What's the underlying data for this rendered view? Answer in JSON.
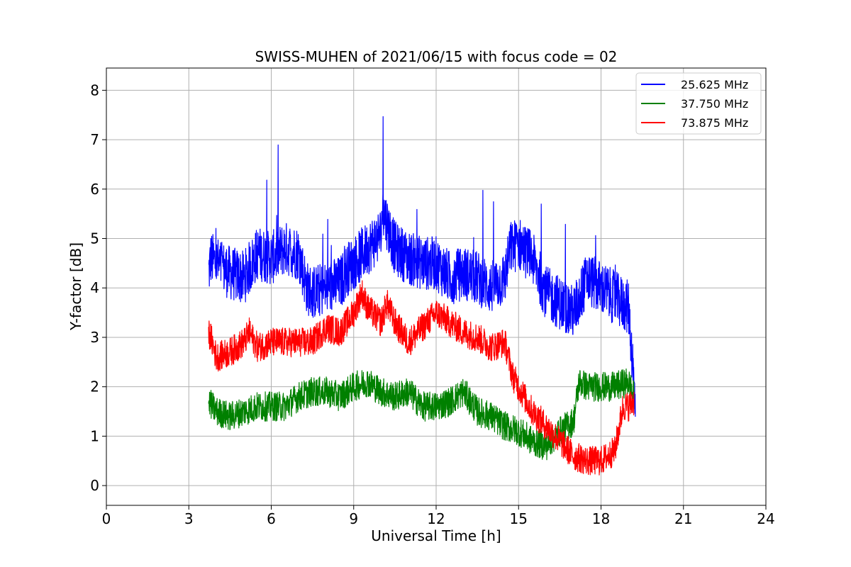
{
  "chart_data": {
    "type": "line",
    "title": "SWISS-MUHEN of 2021/06/15 with focus code = 02",
    "xlabel": "Universal Time [h]",
    "ylabel": "Y-factor [dB]",
    "xlim": [
      0,
      24
    ],
    "ylim": [
      -0.4,
      8.45
    ],
    "xticks": [
      0,
      3,
      6,
      9,
      12,
      15,
      18,
      21,
      24
    ],
    "xtick_labels": [
      "0",
      "3",
      "6",
      "9",
      "12",
      "15",
      "18",
      "21",
      "24"
    ],
    "yticks": [
      0,
      1,
      2,
      3,
      4,
      5,
      6,
      7,
      8
    ],
    "ytick_labels": [
      "0",
      "1",
      "2",
      "3",
      "4",
      "5",
      "6",
      "7",
      "8"
    ],
    "grid": true,
    "legend_position": "top-right",
    "series": [
      {
        "name": "25.625 MHz",
        "color": "#0000ff",
        "x": [
          3.72,
          3.8,
          4.0,
          4.5,
          5.0,
          5.5,
          6.0,
          6.5,
          7.0,
          7.3,
          7.5,
          8.0,
          8.5,
          8.8,
          9.0,
          9.5,
          10.0,
          10.05,
          10.5,
          11.0,
          11.5,
          12.0,
          12.5,
          13.0,
          13.5,
          14.0,
          14.5,
          14.7,
          15.0,
          15.5,
          16.0,
          16.5,
          17.0,
          17.5,
          18.0,
          18.5,
          19.0,
          19.15,
          19.25
        ],
        "y": [
          4.3,
          4.6,
          4.5,
          4.3,
          4.2,
          4.7,
          4.6,
          4.8,
          4.7,
          4.0,
          3.9,
          4.0,
          4.1,
          4.4,
          4.5,
          4.8,
          5.1,
          5.6,
          4.8,
          4.6,
          4.5,
          4.5,
          4.2,
          4.3,
          4.2,
          4.0,
          4.2,
          4.8,
          4.9,
          4.6,
          3.9,
          3.7,
          3.5,
          4.2,
          4.0,
          3.8,
          3.6,
          2.5,
          1.6
        ]
      },
      {
        "name": "37.750 MHz",
        "color": "#008000",
        "x": [
          3.72,
          4.0,
          4.5,
          5.0,
          5.5,
          6.0,
          6.5,
          7.0,
          7.5,
          8.0,
          8.5,
          9.0,
          9.5,
          10.0,
          10.5,
          11.0,
          11.5,
          12.0,
          12.5,
          13.0,
          13.5,
          14.0,
          14.5,
          15.0,
          15.5,
          16.0,
          16.5,
          17.0,
          17.2,
          17.5,
          18.0,
          18.5,
          19.0,
          19.2
        ],
        "y": [
          1.7,
          1.5,
          1.4,
          1.5,
          1.6,
          1.6,
          1.6,
          1.8,
          1.9,
          1.9,
          1.8,
          2.0,
          2.1,
          1.9,
          1.8,
          1.9,
          1.6,
          1.6,
          1.7,
          1.9,
          1.5,
          1.4,
          1.2,
          1.1,
          0.9,
          0.8,
          1.1,
          1.3,
          2.1,
          2.0,
          2.0,
          2.0,
          2.1,
          1.8
        ]
      },
      {
        "name": "73.875 MHz",
        "color": "#ff0000",
        "x": [
          3.72,
          3.8,
          4.0,
          4.5,
          5.0,
          5.2,
          5.5,
          6.0,
          6.5,
          7.0,
          7.5,
          8.0,
          8.5,
          9.0,
          9.3,
          9.5,
          10.0,
          10.2,
          10.5,
          11.0,
          11.5,
          12.0,
          12.5,
          13.0,
          13.5,
          14.0,
          14.5,
          14.8,
          15.0,
          15.5,
          16.0,
          16.5,
          17.0,
          17.5,
          18.0,
          18.5,
          18.8,
          19.0,
          19.2
        ],
        "y": [
          3.1,
          3.0,
          2.6,
          2.7,
          2.9,
          3.1,
          2.8,
          2.9,
          2.9,
          2.9,
          2.9,
          3.2,
          3.1,
          3.5,
          3.9,
          3.6,
          3.3,
          3.7,
          3.3,
          2.9,
          3.2,
          3.5,
          3.3,
          3.1,
          3.0,
          2.8,
          2.9,
          2.2,
          2.0,
          1.5,
          1.2,
          0.9,
          0.6,
          0.5,
          0.5,
          0.7,
          1.6,
          1.6,
          1.7
        ]
      }
    ]
  }
}
